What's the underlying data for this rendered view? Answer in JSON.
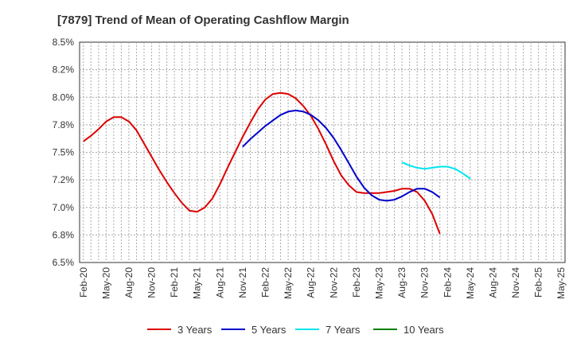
{
  "chart_data": {
    "type": "line",
    "title": "[7879]  Trend of Mean of Operating Cashflow Margin",
    "xlabel": "",
    "ylabel": "",
    "ylim": [
      6.5,
      8.5
    ],
    "yticks": [
      6.5,
      6.75,
      7.0,
      7.25,
      7.5,
      7.75,
      8.0,
      8.25,
      8.5
    ],
    "ytick_labels": [
      "6.5%",
      "6.8%",
      "7.0%",
      "7.2%",
      "7.5%",
      "7.8%",
      "8.0%",
      "8.2%",
      "8.5%"
    ],
    "x_tick_labels": [
      "Feb-20",
      "May-20",
      "Aug-20",
      "Nov-20",
      "Feb-21",
      "May-21",
      "Aug-21",
      "Nov-21",
      "Feb-22",
      "May-22",
      "Aug-22",
      "Nov-22",
      "Feb-23",
      "May-23",
      "Aug-23",
      "Nov-23",
      "Feb-24",
      "May-24",
      "Aug-24",
      "Nov-24",
      "Feb-25",
      "May-25"
    ],
    "x_count": 64,
    "grid": true,
    "legend_position": "bottom",
    "series": [
      {
        "name": "3 Years",
        "color": "#dd0000",
        "start_index": 0,
        "values": [
          7.6,
          7.65,
          7.71,
          7.78,
          7.82,
          7.82,
          7.78,
          7.7,
          7.58,
          7.46,
          7.34,
          7.23,
          7.13,
          7.04,
          6.97,
          6.96,
          7.0,
          7.08,
          7.21,
          7.36,
          7.5,
          7.64,
          7.77,
          7.89,
          7.98,
          8.03,
          8.04,
          8.03,
          7.99,
          7.92,
          7.83,
          7.71,
          7.57,
          7.42,
          7.29,
          7.2,
          7.14,
          7.13,
          7.13,
          7.13,
          7.14,
          7.15,
          7.17,
          7.17,
          7.14,
          7.06,
          6.94,
          6.76
        ]
      },
      {
        "name": "5 Years",
        "color": "#0000cc",
        "start_index": 21,
        "values": [
          7.55,
          7.62,
          7.68,
          7.74,
          7.79,
          7.84,
          7.87,
          7.88,
          7.87,
          7.84,
          7.79,
          7.72,
          7.63,
          7.52,
          7.4,
          7.28,
          7.18,
          7.11,
          7.07,
          7.06,
          7.07,
          7.1,
          7.14,
          7.17,
          7.17,
          7.14,
          7.09
        ]
      },
      {
        "name": "7 Years",
        "color": "#00e5ee",
        "start_index": 42,
        "values": [
          7.41,
          7.38,
          7.36,
          7.35,
          7.36,
          7.37,
          7.37,
          7.35,
          7.31,
          7.26
        ]
      },
      {
        "name": "10 Years",
        "color": "#008000",
        "start_index": 0,
        "values": []
      }
    ]
  }
}
